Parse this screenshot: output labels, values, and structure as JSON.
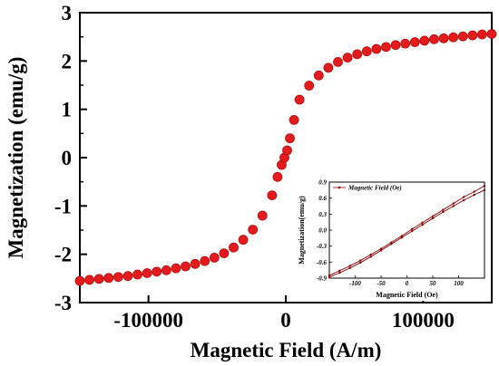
{
  "chart_data": [
    {
      "type": "scatter",
      "title": "",
      "xlabel": "Magnetic Field (A/m)",
      "ylabel": "Magnetization (emu/g)",
      "xlim": [
        -150000,
        150000
      ],
      "ylim": [
        -3,
        3
      ],
      "xticks": [
        {
          "value": -100000,
          "label": "-100000"
        },
        {
          "value": 0,
          "label": "0"
        },
        {
          "value": 100000,
          "label": "100000"
        }
      ],
      "yticks": [
        {
          "value": 3,
          "label": "3"
        },
        {
          "value": 2,
          "label": "2"
        },
        {
          "value": 1,
          "label": "1"
        },
        {
          "value": 0,
          "label": "0"
        },
        {
          "value": -1,
          "label": "-1"
        },
        {
          "value": -2,
          "label": "-2"
        },
        {
          "value": -3,
          "label": "-3"
        }
      ],
      "grid": false,
      "colors": {
        "marker": "#e41a1c",
        "marker_edge": "#b01010",
        "line": "#8b0000",
        "axis": "#000000"
      },
      "series": [
        {
          "x": [
            -150000,
            -143000,
            -136000,
            -129000,
            -122000,
            -115000,
            -108000,
            -101000,
            -94000,
            -87000,
            -80000,
            -73000,
            -66000,
            -59000,
            -52000,
            -45000,
            -38000,
            -31000,
            -24000,
            -17000,
            -10000,
            -6000,
            -3000,
            -1000,
            1000,
            3000,
            6000,
            10000,
            17000,
            24000,
            31000,
            38000,
            45000,
            52000,
            59000,
            66000,
            73000,
            80000,
            87000,
            94000,
            101000,
            108000,
            115000,
            122000,
            129000,
            136000,
            143000,
            150000
          ],
          "y": [
            -2.55,
            -2.53,
            -2.51,
            -2.49,
            -2.47,
            -2.45,
            -2.42,
            -2.39,
            -2.36,
            -2.33,
            -2.29,
            -2.25,
            -2.2,
            -2.14,
            -2.07,
            -1.98,
            -1.86,
            -1.7,
            -1.49,
            -1.2,
            -0.78,
            -0.4,
            -0.15,
            0.0,
            0.15,
            0.4,
            0.78,
            1.2,
            1.49,
            1.7,
            1.86,
            1.98,
            2.07,
            2.14,
            2.2,
            2.25,
            2.29,
            2.33,
            2.36,
            2.39,
            2.42,
            2.45,
            2.47,
            2.49,
            2.51,
            2.53,
            2.55,
            2.56
          ]
        }
      ]
    },
    {
      "type": "line",
      "title": "",
      "xlabel": "Magnetic Field (Oe)",
      "ylabel": "Magnetization(emu/g)",
      "xlim": [
        -150,
        150
      ],
      "ylim": [
        -0.9,
        0.9
      ],
      "xticks": [
        {
          "value": -100,
          "label": "-100"
        },
        {
          "value": -50,
          "label": "-50"
        },
        {
          "value": 0,
          "label": "0"
        },
        {
          "value": 50,
          "label": "50"
        },
        {
          "value": 100,
          "label": "100"
        }
      ],
      "yticks": [
        {
          "value": 0.9,
          "label": "0.9"
        },
        {
          "value": 0.6,
          "label": "0.6"
        },
        {
          "value": 0.3,
          "label": "0.3"
        },
        {
          "value": 0.0,
          "label": "0.0"
        },
        {
          "value": -0.3,
          "label": "-0.3"
        },
        {
          "value": -0.6,
          "label": "-0.6"
        },
        {
          "value": -0.9,
          "label": "-0.9"
        }
      ],
      "legend": {
        "position": "top-left",
        "entries": [
          "Magnetic Field (Oe)"
        ]
      },
      "series": [
        {
          "name": "Magnetic Field (Oe)",
          "x": [
            -150,
            -130,
            -110,
            -90,
            -70,
            -50,
            -30,
            -10,
            10,
            30,
            50,
            70,
            90,
            110,
            130,
            150
          ],
          "y": [
            -0.85,
            -0.76,
            -0.67,
            -0.57,
            -0.46,
            -0.35,
            -0.23,
            -0.11,
            0.02,
            0.14,
            0.26,
            0.38,
            0.5,
            0.62,
            0.72,
            0.83
          ]
        },
        {
          "name": "Magnetic Field (Oe)",
          "x": [
            150,
            130,
            110,
            90,
            70,
            50,
            30,
            10,
            -10,
            -30,
            -50,
            -70,
            -90,
            -110,
            -130,
            -150
          ],
          "y": [
            0.75,
            0.66,
            0.56,
            0.45,
            0.34,
            0.22,
            0.1,
            -0.02,
            -0.14,
            -0.26,
            -0.38,
            -0.5,
            -0.61,
            -0.71,
            -0.8,
            -0.88
          ]
        }
      ]
    }
  ]
}
